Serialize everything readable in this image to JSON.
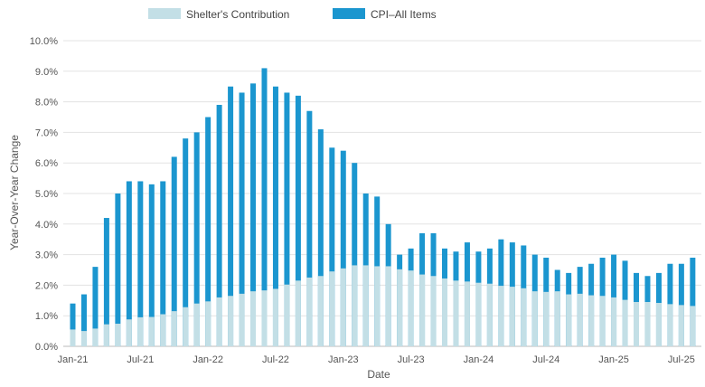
{
  "chart_data": {
    "type": "bar",
    "stacked_overlay": true,
    "title": "",
    "xlabel": "Date",
    "ylabel": "Year-Over-Year Change",
    "ylim": [
      0,
      10
    ],
    "yticks": [
      "0.0%",
      "1.0%",
      "2.0%",
      "3.0%",
      "4.0%",
      "5.0%",
      "6.0%",
      "7.0%",
      "8.0%",
      "9.0%",
      "10.0%"
    ],
    "xtick_labels": [
      "Jan-21",
      "Jul-21",
      "Jan-22",
      "Jul-22",
      "Jan-23",
      "Jul-23",
      "Jan-24",
      "Jul-24",
      "Jan-25",
      "Jul-25"
    ],
    "xtick_every": 6,
    "grid": true,
    "legend_position": "top",
    "categories": [
      "Jan-21",
      "Feb-21",
      "Mar-21",
      "Apr-21",
      "May-21",
      "Jun-21",
      "Jul-21",
      "Aug-21",
      "Sep-21",
      "Oct-21",
      "Nov-21",
      "Dec-21",
      "Jan-22",
      "Feb-22",
      "Mar-22",
      "Apr-22",
      "May-22",
      "Jun-22",
      "Jul-22",
      "Aug-22",
      "Sep-22",
      "Oct-22",
      "Nov-22",
      "Dec-22",
      "Jan-23",
      "Feb-23",
      "Mar-23",
      "Apr-23",
      "May-23",
      "Jun-23",
      "Jul-23",
      "Aug-23",
      "Sep-23",
      "Oct-23",
      "Nov-23",
      "Dec-23",
      "Jan-24",
      "Feb-24",
      "Mar-24",
      "Apr-24",
      "May-24",
      "Jun-24",
      "Jul-24",
      "Aug-24",
      "Sep-24",
      "Oct-24",
      "Nov-24",
      "Dec-24",
      "Jan-25",
      "Feb-25",
      "Mar-25",
      "Apr-25",
      "May-25",
      "Jun-25",
      "Jul-25",
      "Aug-25"
    ],
    "series": [
      {
        "name": "Shelter's Contribution",
        "color": "#c3dfe6",
        "values": [
          0.55,
          0.5,
          0.58,
          0.72,
          0.74,
          0.88,
          0.95,
          0.96,
          1.05,
          1.15,
          1.28,
          1.4,
          1.47,
          1.6,
          1.65,
          1.72,
          1.8,
          1.83,
          1.88,
          2.02,
          2.15,
          2.25,
          2.3,
          2.45,
          2.55,
          2.65,
          2.65,
          2.62,
          2.62,
          2.52,
          2.48,
          2.35,
          2.3,
          2.22,
          2.15,
          2.12,
          2.08,
          2.05,
          1.98,
          1.95,
          1.9,
          1.8,
          1.78,
          1.8,
          1.7,
          1.72,
          1.67,
          1.65,
          1.6,
          1.52,
          1.45,
          1.45,
          1.42,
          1.38,
          1.35,
          1.32
        ]
      },
      {
        "name": "CPI–All Items",
        "color": "#1b96cf",
        "values": [
          1.4,
          1.7,
          2.6,
          4.2,
          5.0,
          5.4,
          5.4,
          5.3,
          5.4,
          6.2,
          6.8,
          7.0,
          7.5,
          7.9,
          8.5,
          8.3,
          8.6,
          9.1,
          8.5,
          8.3,
          8.2,
          7.7,
          7.1,
          6.5,
          6.4,
          6.0,
          5.0,
          4.9,
          4.0,
          3.0,
          3.2,
          3.7,
          3.7,
          3.2,
          3.1,
          3.4,
          3.1,
          3.2,
          3.5,
          3.4,
          3.3,
          3.0,
          2.9,
          2.5,
          2.4,
          2.6,
          2.7,
          2.9,
          3.0,
          2.8,
          2.4,
          2.3,
          2.4,
          2.7,
          2.7,
          2.9
        ]
      }
    ]
  }
}
